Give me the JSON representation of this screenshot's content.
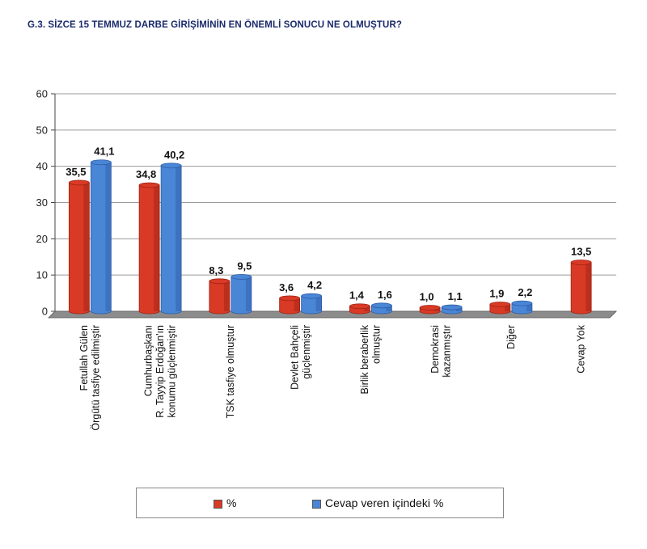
{
  "title": "G.3. SİZCE 15 TEMMUZ DARBE GİRİŞİMİNİN EN ÖNEMLİ SONUCU NE OLMUŞTUR?",
  "colors": {
    "series1": "#d93a26",
    "series1_dark": "#9c2212",
    "series2": "#4a86d6",
    "series2_dark": "#2c5ca6",
    "floor": "#8c8c8c"
  },
  "chart_data": {
    "type": "bar",
    "title": "G.3. SİZCE 15 TEMMUZ DARBE GİRİŞİMİNİN EN ÖNEMLİ SONUCU NE OLMUŞTUR?",
    "categories": [
      [
        "Fetullah Gülen",
        "Örgütü tasfiye edilmiştir"
      ],
      [
        "Cumhurbaşkanı",
        "R. Tayyip Erdoğan'ın",
        "konumu güçlenmiştir"
      ],
      [
        "TSK tasfiye olmuştur"
      ],
      [
        "Devlet Bahçeli",
        "güçlenmiştir"
      ],
      [
        "Birlik beraberlik",
        "olmuştur"
      ],
      [
        "Demokrasi",
        "kazanmıştır"
      ],
      [
        "Diğer"
      ],
      [
        "Cevap Yok"
      ]
    ],
    "series": [
      {
        "name": "%",
        "values": [
          35.5,
          34.8,
          8.3,
          3.6,
          1.4,
          1.0,
          1.9,
          13.5
        ],
        "labels": [
          "35,5",
          "34,8",
          "8,3",
          "3,6",
          "1,4",
          "1,0",
          "1,9",
          "13,5"
        ]
      },
      {
        "name": "Cevap veren içindeki %",
        "values": [
          41.1,
          40.2,
          9.5,
          4.2,
          1.6,
          1.1,
          2.2,
          null
        ],
        "labels": [
          "41,1",
          "40,2",
          "9,5",
          "4,2",
          "1,6",
          "1,1",
          "2,2",
          null
        ]
      }
    ],
    "yticks": [
      "0",
      "10",
      "20",
      "30",
      "40",
      "50",
      "60"
    ],
    "ylim": [
      0,
      60
    ],
    "grid": true,
    "legend_position": "bottom"
  }
}
